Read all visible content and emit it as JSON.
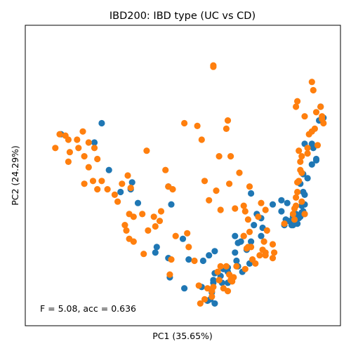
{
  "chart_data": {
    "type": "scatter",
    "title": "IBD200: IBD type (UC vs CD)",
    "xlabel": "PC1 (35.65%)",
    "ylabel": "PC2 (24.29%)",
    "annotation": "F = 5.08, acc = 0.636",
    "xlim": [
      0,
      100
    ],
    "ylim": [
      0,
      100
    ],
    "ticks": "none",
    "grid": false,
    "legend": "none",
    "series": [
      {
        "color": "#1f77b4",
        "points": [
          [
            8,
            65
          ],
          [
            19.5,
            62
          ],
          [
            22,
            69
          ],
          [
            24.5,
            52
          ],
          [
            28.5,
            44
          ],
          [
            32,
            45
          ],
          [
            32.5,
            47.5
          ],
          [
            34.5,
            40
          ],
          [
            41,
            24
          ],
          [
            45,
            46
          ],
          [
            46,
            39.5
          ],
          [
            40.5,
            22
          ],
          [
            45,
            20
          ],
          [
            45.5,
            13
          ],
          [
            50,
            27
          ],
          [
            52,
            19.5
          ],
          [
            50.5,
            9
          ],
          [
            57,
            19
          ],
          [
            56.5,
            9.5
          ],
          [
            58.5,
            4.5
          ],
          [
            60,
            7.5
          ],
          [
            59.5,
            5
          ],
          [
            60.5,
            12
          ],
          [
            61,
            14.5
          ],
          [
            60.5,
            11
          ],
          [
            59,
            21
          ],
          [
            61,
            22.5
          ],
          [
            61,
            3.5
          ],
          [
            63.5,
            11
          ],
          [
            63,
            13.5
          ],
          [
            64,
            16
          ],
          [
            65.5,
            11
          ],
          [
            65.5,
            16.5
          ],
          [
            65.5,
            15
          ],
          [
            68,
            22
          ],
          [
            68.5,
            19
          ],
          [
            68,
            28
          ],
          [
            69,
            25.5
          ],
          [
            70,
            26
          ],
          [
            69,
            17
          ],
          [
            70.5,
            15
          ],
          [
            72,
            23
          ],
          [
            73,
            18
          ],
          [
            73.5,
            26
          ],
          [
            73.5,
            43.5
          ],
          [
            74.5,
            32
          ],
          [
            77,
            28
          ],
          [
            77.5,
            31
          ],
          [
            75.5,
            36
          ],
          [
            77,
            34.5
          ],
          [
            81,
            39.5
          ],
          [
            84,
            37
          ],
          [
            85,
            32
          ],
          [
            85.5,
            34
          ],
          [
            86.5,
            33.5
          ],
          [
            87.5,
            32
          ],
          [
            88.5,
            33.5
          ],
          [
            88,
            32
          ],
          [
            89.5,
            32.5
          ],
          [
            88,
            35
          ],
          [
            89,
            36
          ],
          [
            90.5,
            35
          ],
          [
            90,
            34.5
          ],
          [
            91,
            36.5
          ],
          [
            91.5,
            37
          ],
          [
            91,
            39
          ],
          [
            92,
            39.5
          ],
          [
            92,
            36
          ],
          [
            91.5,
            44
          ],
          [
            90.5,
            47
          ],
          [
            93,
            49
          ],
          [
            91.5,
            50.5
          ],
          [
            94.5,
            54
          ],
          [
            95,
            60
          ],
          [
            96,
            56
          ],
          [
            96,
            55.5
          ],
          [
            92,
            61.5
          ],
          [
            94.5,
            61.5
          ],
          [
            97.5,
            75
          ],
          [
            98.5,
            71
          ],
          [
            97,
            70
          ],
          [
            84,
            41
          ],
          [
            86,
            40
          ],
          [
            92,
            43
          ]
        ]
      },
      {
        "color": "#ff7f0e",
        "points": [
          [
            6,
            60
          ],
          [
            9.5,
            64.5
          ],
          [
            7.5,
            65
          ],
          [
            10.5,
            63
          ],
          [
            11,
            58.5
          ],
          [
            13.5,
            63
          ],
          [
            10.5,
            55
          ],
          [
            14,
            60
          ],
          [
            15.5,
            66
          ],
          [
            17.5,
            62
          ],
          [
            16,
            57
          ],
          [
            19.5,
            60
          ],
          [
            17.5,
            53
          ],
          [
            20.5,
            56
          ],
          [
            19,
            48
          ],
          [
            20.5,
            45
          ],
          [
            16,
            47
          ],
          [
            22,
            48
          ],
          [
            24,
            45
          ],
          [
            26.5,
            43
          ],
          [
            27.5,
            40.5
          ],
          [
            29,
            47
          ],
          [
            31,
            50
          ],
          [
            32,
            45.5
          ],
          [
            31.5,
            36
          ],
          [
            33,
            35
          ],
          [
            30,
            32
          ],
          [
            30.5,
            30
          ],
          [
            31.5,
            27
          ],
          [
            33,
            26
          ],
          [
            37.5,
            59
          ],
          [
            36,
            36
          ],
          [
            38,
            30
          ],
          [
            36.5,
            21.5
          ],
          [
            40.5,
            31.5
          ],
          [
            40,
            35
          ],
          [
            42,
            33.5
          ],
          [
            42.5,
            37
          ],
          [
            44,
            52
          ],
          [
            46.5,
            45
          ],
          [
            45,
            46
          ],
          [
            47.5,
            28
          ],
          [
            51.5,
            29
          ],
          [
            46,
            19.5
          ],
          [
            45.5,
            14
          ],
          [
            52,
            24
          ],
          [
            55,
            68
          ],
          [
            54,
            19
          ],
          [
            56.5,
            63
          ],
          [
            55.5,
            10
          ],
          [
            56,
            3.5
          ],
          [
            57.5,
            5
          ],
          [
            58.5,
            9
          ],
          [
            60,
            6
          ],
          [
            60.5,
            9.5
          ],
          [
            60,
            8
          ],
          [
            57.5,
            48
          ],
          [
            59,
            41
          ],
          [
            63,
            37.5
          ],
          [
            62.5,
            57
          ],
          [
            61.5,
            44.5
          ],
          [
            66,
            47
          ],
          [
            66.5,
            57
          ],
          [
            68,
            38
          ],
          [
            71,
            39
          ],
          [
            71.5,
            37
          ],
          [
            73,
            46
          ],
          [
            69.5,
            51
          ],
          [
            72.5,
            34
          ],
          [
            73,
            29.5
          ],
          [
            73.5,
            24
          ],
          [
            71,
            28
          ],
          [
            76,
            35
          ],
          [
            77,
            40
          ],
          [
            78.5,
            37.5
          ],
          [
            79,
            30
          ],
          [
            78.5,
            21
          ],
          [
            78.5,
            22
          ],
          [
            78,
            26
          ],
          [
            76.5,
            21
          ],
          [
            75,
            18
          ],
          [
            74,
            19.5
          ],
          [
            68.5,
            17
          ],
          [
            67,
            11.5
          ],
          [
            66.5,
            12
          ],
          [
            64,
            9
          ],
          [
            62.5,
            12
          ],
          [
            62,
            15
          ],
          [
            63,
            17
          ],
          [
            65,
            17
          ],
          [
            65.5,
            8
          ],
          [
            66,
            14
          ],
          [
            67.5,
            13
          ],
          [
            71,
            28
          ],
          [
            72.5,
            24
          ],
          [
            71.5,
            16
          ],
          [
            72,
            23.5
          ],
          [
            77.5,
            23
          ],
          [
            81,
            25
          ],
          [
            81.5,
            22
          ],
          [
            81,
            20
          ],
          [
            85,
            32.5
          ],
          [
            88,
            36
          ],
          [
            88.5,
            34
          ],
          [
            89,
            39
          ],
          [
            89,
            42
          ],
          [
            89.5,
            44
          ],
          [
            89.5,
            47.5
          ],
          [
            90,
            48
          ],
          [
            91,
            51
          ],
          [
            93,
            58
          ],
          [
            93,
            60
          ],
          [
            93.5,
            65
          ],
          [
            94.5,
            66
          ],
          [
            96.5,
            61
          ],
          [
            95.5,
            67
          ],
          [
            98.5,
            69
          ],
          [
            98,
            70.5
          ],
          [
            96,
            73
          ],
          [
            98,
            71.5
          ],
          [
            97.5,
            75
          ],
          [
            94.5,
            84
          ],
          [
            95,
            81
          ],
          [
            89.5,
            77
          ],
          [
            89,
            75
          ],
          [
            92,
            71.5
          ],
          [
            90,
            59
          ],
          [
            91,
            57
          ],
          [
            90.5,
            55
          ],
          [
            90.5,
            52
          ],
          [
            91,
            40.5
          ],
          [
            92,
            36
          ],
          [
            88.5,
            38
          ],
          [
            65.5,
            70
          ],
          [
            65,
            67
          ],
          [
            60.5,
            90
          ],
          [
            60.5,
            89.5
          ],
          [
            50.5,
            69
          ]
        ]
      }
    ]
  }
}
